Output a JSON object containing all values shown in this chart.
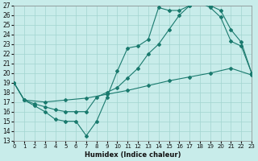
{
  "xlabel": "Humidex (Indice chaleur)",
  "xlim": [
    0,
    23
  ],
  "ylim": [
    13,
    27
  ],
  "xticks": [
    0,
    1,
    2,
    3,
    4,
    5,
    6,
    7,
    8,
    9,
    10,
    11,
    12,
    13,
    14,
    15,
    16,
    17,
    18,
    19,
    20,
    21,
    22,
    23
  ],
  "yticks": [
    13,
    14,
    15,
    16,
    17,
    18,
    19,
    20,
    21,
    22,
    23,
    24,
    25,
    26,
    27
  ],
  "background_color": "#c8ecea",
  "grid_color": "#a2d4d0",
  "line_color": "#1a7a6e",
  "line1_x": [
    0,
    1,
    2,
    3,
    4,
    5,
    6,
    7,
    8,
    9,
    10,
    11,
    12,
    13,
    14,
    15,
    16,
    17,
    18,
    19,
    20,
    21,
    22,
    23
  ],
  "line1_y": [
    19.0,
    17.2,
    16.6,
    16.0,
    15.2,
    15.0,
    15.0,
    13.5,
    15.0,
    17.5,
    20.2,
    22.6,
    22.8,
    23.5,
    26.8,
    26.5,
    26.5,
    27.0,
    27.3,
    26.8,
    25.8,
    23.3,
    22.8,
    20.0
  ],
  "line2_x": [
    0,
    1,
    2,
    3,
    4,
    5,
    6,
    7,
    8,
    9,
    10,
    11,
    12,
    13,
    14,
    15,
    16,
    17,
    18,
    19,
    20,
    21,
    22,
    23
  ],
  "line2_y": [
    19.0,
    17.2,
    16.8,
    16.5,
    16.2,
    16.0,
    16.0,
    16.0,
    17.5,
    18.0,
    18.5,
    19.5,
    20.5,
    22.0,
    23.0,
    24.5,
    26.0,
    27.0,
    27.3,
    27.0,
    26.5,
    24.5,
    23.2,
    20.0
  ],
  "line3_x": [
    0,
    1,
    3,
    5,
    7,
    9,
    11,
    13,
    15,
    17,
    19,
    21,
    23
  ],
  "line3_y": [
    19.0,
    17.2,
    17.0,
    17.2,
    17.4,
    17.8,
    18.2,
    18.7,
    19.2,
    19.6,
    20.0,
    20.5,
    19.8
  ],
  "markersize": 2.0
}
